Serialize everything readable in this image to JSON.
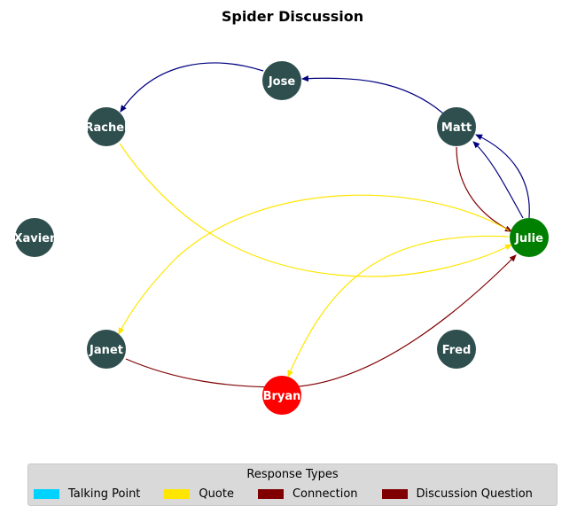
{
  "title": "Spider Discussion",
  "colors": {
    "node_default": "#2f4f4f",
    "node_current": "#008000",
    "node_alert": "#ff0000",
    "edge_blue": "#000080",
    "edge_yellow": "#ffe600",
    "edge_red": "#800000"
  },
  "nodes": [
    {
      "id": "jose",
      "label": "Jose",
      "color": "#2f4f4f"
    },
    {
      "id": "rachel",
      "label": "Rachel",
      "color": "#2f4f4f"
    },
    {
      "id": "matt",
      "label": "Matt",
      "color": "#2f4f4f"
    },
    {
      "id": "xavier",
      "label": "Xavier",
      "color": "#2f4f4f"
    },
    {
      "id": "julie",
      "label": "Julie",
      "color": "#008000"
    },
    {
      "id": "janet",
      "label": "Janet",
      "color": "#2f4f4f"
    },
    {
      "id": "fred",
      "label": "Fred",
      "color": "#2f4f4f"
    },
    {
      "id": "bryan",
      "label": "Bryan",
      "color": "#ff0000"
    }
  ],
  "edges": [
    {
      "from": "jose",
      "to": "rachel",
      "type": "Talking Point"
    },
    {
      "from": "matt",
      "to": "jose",
      "type": "Talking Point"
    },
    {
      "from": "julie",
      "to": "matt",
      "type": "Talking Point"
    },
    {
      "from": "matt",
      "to": "julie",
      "type": "Connection"
    },
    {
      "from": "rachel",
      "to": "julie",
      "type": "Quote"
    },
    {
      "from": "julie",
      "to": "janet",
      "type": "Quote"
    },
    {
      "from": "julie",
      "to": "bryan",
      "type": "Quote"
    },
    {
      "from": "janet",
      "to": "julie",
      "type": "Connection"
    }
  ],
  "legend": {
    "title": "Response Types",
    "items": [
      {
        "label": "Talking Point",
        "color": "#00d2ff"
      },
      {
        "label": "Quote",
        "color": "#ffe600"
      },
      {
        "label": "Connection",
        "color": "#800000"
      },
      {
        "label": "Discussion Question",
        "color": "#800000"
      }
    ]
  }
}
